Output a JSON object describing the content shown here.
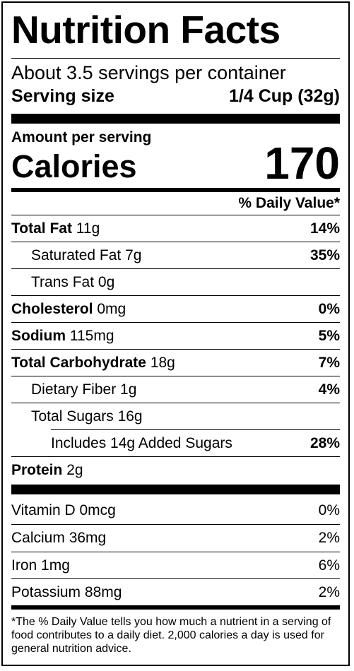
{
  "title": "Nutrition Facts",
  "servings_per_container": "About 3.5 servings per container",
  "serving_size": {
    "label": "Serving size",
    "value": "1/4 Cup (32g)"
  },
  "amount_per_serving": "Amount per serving",
  "calories": {
    "label": "Calories",
    "value": "170"
  },
  "daily_value_header": "% Daily Value*",
  "nutrients": [
    {
      "name": "Total Fat",
      "amount": "11g",
      "dv": "14%"
    },
    {
      "name": "Saturated Fat",
      "amount": "7g",
      "dv": "35%"
    },
    {
      "name": "Trans Fat",
      "amount": "0g",
      "dv": ""
    },
    {
      "name": "Cholesterol",
      "amount": "0mg",
      "dv": "0%"
    },
    {
      "name": "Sodium",
      "amount": "115mg",
      "dv": "5%"
    },
    {
      "name": "Total Carbohydrate",
      "amount": "18g",
      "dv": "7%"
    },
    {
      "name": "Dietary Fiber",
      "amount": "1g",
      "dv": "4%"
    },
    {
      "name": "Total Sugars",
      "amount": "16g",
      "dv": ""
    },
    {
      "name": "Includes 14g Added Sugars",
      "amount": "",
      "dv": "28%"
    },
    {
      "name": "Protein",
      "amount": "2g",
      "dv": ""
    }
  ],
  "vitamins": [
    {
      "name": "Vitamin D",
      "amount": "0mcg",
      "dv": "0%"
    },
    {
      "name": "Calcium",
      "amount": "36mg",
      "dv": "2%"
    },
    {
      "name": "Iron",
      "amount": "1mg",
      "dv": "6%"
    },
    {
      "name": "Potassium",
      "amount": "88mg",
      "dv": "2%"
    }
  ],
  "footnote": "*The % Daily Value tells you how much a nutrient in a serving of food contributes to a daily diet. 2,000 calories a day is used for general nutrition advice."
}
